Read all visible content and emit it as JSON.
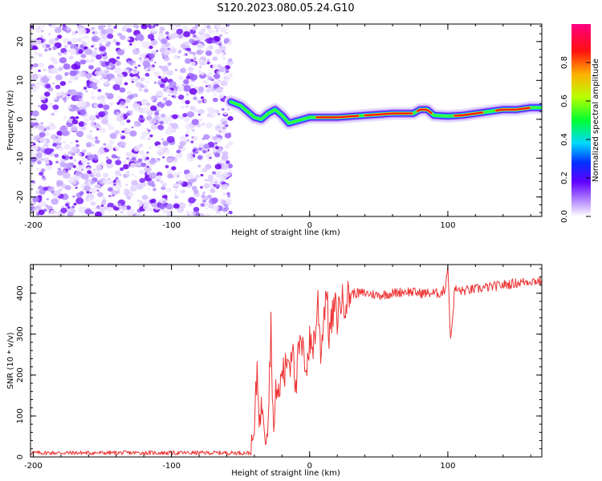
{
  "title": "S120.2023.080.05.24.G10",
  "chart_data": [
    {
      "type": "heatmap",
      "title": "S120.2023.080.05.24.G10",
      "xlabel": "Height of straight line (km)",
      "ylabel": "Frequency (Hz)",
      "xlim": [
        -202,
        168
      ],
      "ylim": [
        -25,
        24.5
      ],
      "x_ticks": [
        "-200",
        "-100",
        "0",
        "100"
      ],
      "y_ticks": [
        "-20",
        "-10",
        "0",
        "10",
        "20"
      ],
      "noise_region_x": [
        -202,
        -57
      ],
      "signal_trace": {
        "x": [
          -57,
          -50,
          -45,
          -40,
          -35,
          -30,
          -25,
          -20,
          -15,
          -10,
          -5,
          0,
          10,
          20,
          40,
          60,
          75,
          80,
          85,
          90,
          100,
          110,
          120,
          130,
          140,
          150,
          160,
          168
        ],
        "y": [
          4.5,
          3.5,
          2.0,
          0.5,
          0.0,
          1.5,
          2.5,
          1.0,
          -1.0,
          -0.5,
          0.0,
          0.5,
          0.5,
          0.5,
          1.0,
          1.5,
          1.5,
          2.5,
          2.5,
          1.0,
          0.8,
          1.0,
          1.5,
          2.0,
          2.5,
          2.5,
          3.0,
          3.0
        ]
      },
      "colorbar": {
        "label": "Normalized spectral amplitude",
        "range": [
          0,
          1
        ],
        "ticks": [
          "0.0",
          "0.2",
          "0.4",
          "0.6",
          "0.8"
        ],
        "stops": [
          "#e8e0ff",
          "#8000ff",
          "#0000ff",
          "#00e0ff",
          "#00ff40",
          "#c8ff00",
          "#ffa000",
          "#ff0000",
          "#ff0080"
        ]
      }
    },
    {
      "type": "line",
      "xlabel": "Height of straight line (km)",
      "ylabel": "SNR (10 * v/v)",
      "xlim": [
        -202,
        168
      ],
      "ylim": [
        0,
        470
      ],
      "x_ticks": [
        "-200",
        "-100",
        "0",
        "100"
      ],
      "y_ticks": [
        "0",
        "100",
        "200",
        "300",
        "400"
      ],
      "series": [
        {
          "name": "SNR",
          "color": "#ee3333",
          "x": [
            -202,
            -150,
            -100,
            -60,
            -42,
            -40,
            -38,
            -36,
            -34,
            -32,
            -30,
            -28,
            -26,
            -24,
            -22,
            -20,
            -18,
            -16,
            -14,
            -12,
            -10,
            -8,
            -6,
            -4,
            -2,
            0,
            2,
            4,
            6,
            8,
            10,
            12,
            14,
            16,
            18,
            20,
            22,
            25,
            30,
            40,
            50,
            60,
            70,
            80,
            90,
            95,
            98,
            100,
            102,
            105,
            110,
            120,
            130,
            140,
            150,
            160,
            168
          ],
          "y": [
            10,
            10,
            10,
            10,
            10,
            60,
            220,
            80,
            140,
            60,
            100,
            320,
            50,
            180,
            140,
            220,
            200,
            250,
            230,
            300,
            150,
            260,
            270,
            240,
            230,
            280,
            270,
            300,
            380,
            260,
            330,
            420,
            300,
            330,
            370,
            340,
            380,
            380,
            400,
            400,
            395,
            400,
            405,
            400,
            400,
            400,
            410,
            470,
            280,
            410,
            405,
            410,
            415,
            420,
            425,
            430,
            430
          ]
        }
      ]
    }
  ]
}
